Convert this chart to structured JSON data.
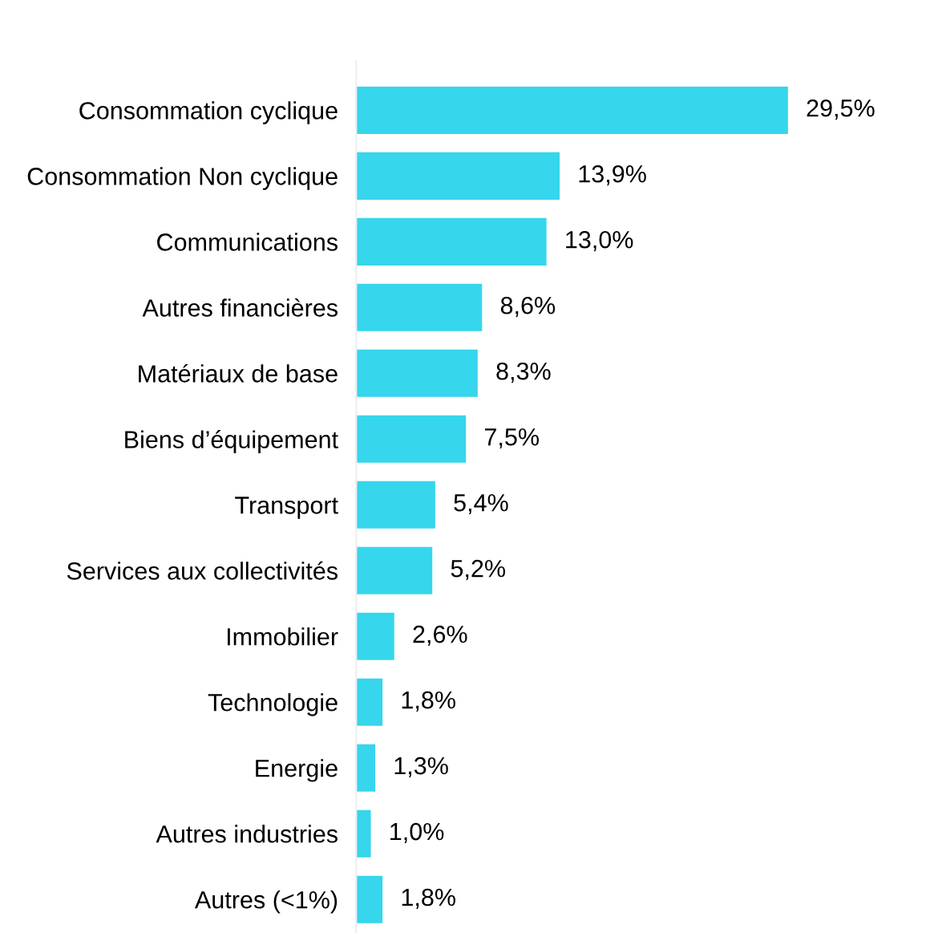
{
  "chart_data": {
    "type": "bar",
    "orientation": "horizontal",
    "categories": [
      "Consommation cyclique",
      "Consommation Non cyclique",
      "Communications",
      "Autres financières",
      "Matériaux de base",
      "Biens d’équipement",
      "Transport",
      "Services aux collectivités",
      "Immobilier",
      "Technologie",
      "Energie",
      "Autres industries",
      "Autres (<1%)"
    ],
    "values": [
      29.5,
      13.9,
      13.0,
      8.6,
      8.3,
      7.5,
      5.4,
      5.2,
      2.6,
      1.8,
      1.3,
      1.0,
      1.8
    ],
    "value_labels": [
      "29,5%",
      "13,9%",
      "13,0%",
      "8,6%",
      "8,3%",
      "7,5%",
      "5,4%",
      "5,2%",
      "2,6%",
      "1,8%",
      "1,3%",
      "1,0%",
      "1,8%"
    ],
    "color": "#36d6ec",
    "grid": false,
    "legend": false
  }
}
